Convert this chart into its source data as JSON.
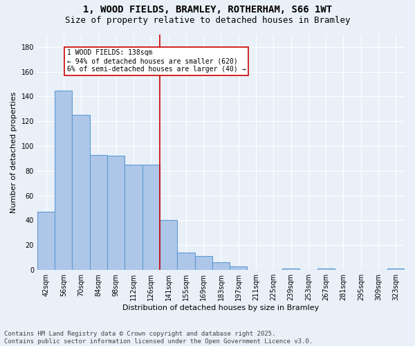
{
  "title": "1, WOOD FIELDS, BRAMLEY, ROTHERHAM, S66 1WT",
  "subtitle": "Size of property relative to detached houses in Bramley",
  "xlabel": "Distribution of detached houses by size in Bramley",
  "ylabel": "Number of detached properties",
  "categories": [
    "42sqm",
    "56sqm",
    "70sqm",
    "84sqm",
    "98sqm",
    "112sqm",
    "126sqm",
    "141sqm",
    "155sqm",
    "169sqm",
    "183sqm",
    "197sqm",
    "211sqm",
    "225sqm",
    "239sqm",
    "253sqm",
    "267sqm",
    "281sqm",
    "295sqm",
    "309sqm",
    "323sqm"
  ],
  "values": [
    47,
    145,
    125,
    93,
    92,
    85,
    85,
    40,
    14,
    11,
    6,
    3,
    0,
    0,
    1,
    0,
    1,
    0,
    0,
    0,
    1
  ],
  "bar_color": "#aec6e8",
  "bar_edge_color": "#5b9bd5",
  "property_line_color": "#cc0000",
  "annotation_text": "1 WOOD FIELDS: 138sqm\n← 94% of detached houses are smaller (620)\n6% of semi-detached houses are larger (40) →",
  "annotation_box_color": "#cc0000",
  "ylim": [
    0,
    190
  ],
  "yticks": [
    0,
    20,
    40,
    60,
    80,
    100,
    120,
    140,
    160,
    180
  ],
  "background_color": "#eaf0f8",
  "plot_bg_color": "#eaf0f8",
  "grid_color": "#ffffff",
  "footer_text": "Contains HM Land Registry data © Crown copyright and database right 2025.\nContains public sector information licensed under the Open Government Licence v3.0.",
  "title_fontsize": 10,
  "subtitle_fontsize": 9,
  "axis_label_fontsize": 8,
  "tick_fontsize": 7,
  "footer_fontsize": 6.5,
  "annotation_fontsize": 7
}
